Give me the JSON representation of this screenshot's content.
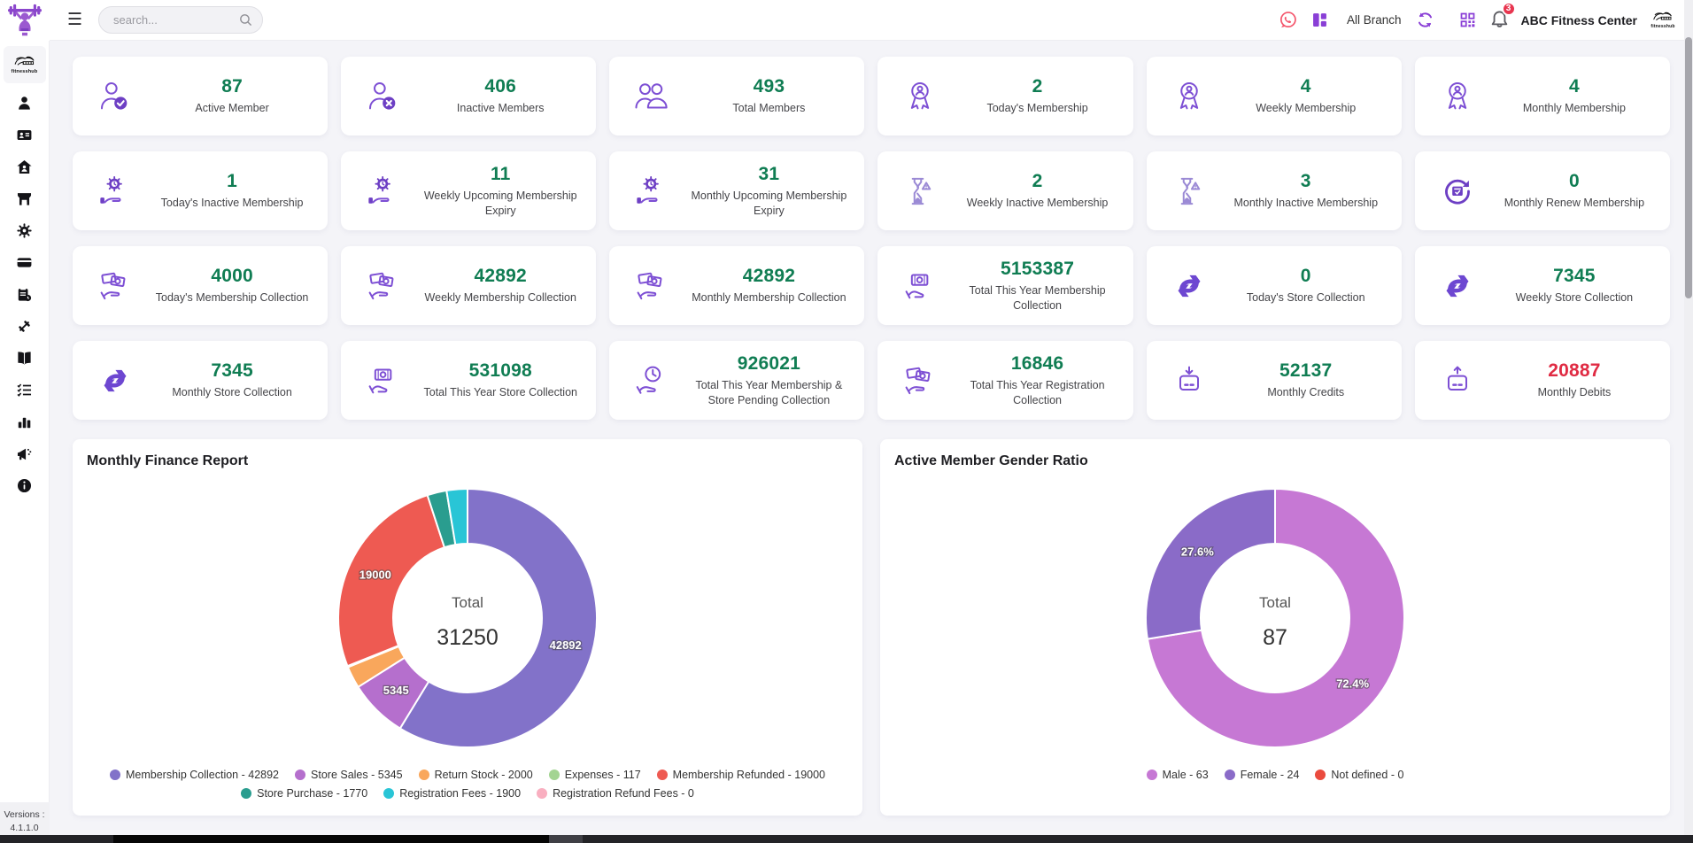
{
  "theme": {
    "accent_purple": "#7d4fd4",
    "value_green": "#107d53",
    "value_red": "#e02b43",
    "badge_red": "#e8354f",
    "whatsapp_red": "#f4566c"
  },
  "header": {
    "search_placeholder": "search...",
    "branch_label": "All Branch",
    "notification_count": "3",
    "org_name": "ABC Fitness Center",
    "icons": [
      "hamburger-icon",
      "search-icon",
      "whatsapp-icon",
      "apps-grid-icon",
      "refresh-icon",
      "qr-code-icon",
      "notification-bell-icon"
    ]
  },
  "sidebar": {
    "brand_text": "fitnesshub",
    "versions_label": "Versions :",
    "version_number": "4.1.1.0",
    "items": [
      {
        "name": "members",
        "icon": "user"
      },
      {
        "name": "membership-card",
        "icon": "id-card"
      },
      {
        "name": "facility",
        "icon": "home"
      },
      {
        "name": "store",
        "icon": "store"
      },
      {
        "name": "settings",
        "icon": "gear"
      },
      {
        "name": "billing",
        "icon": "credit-card"
      },
      {
        "name": "attendance-report",
        "icon": "report"
      },
      {
        "name": "workout",
        "icon": "dumbbell"
      },
      {
        "name": "library",
        "icon": "book"
      },
      {
        "name": "tasks",
        "icon": "checklist"
      },
      {
        "name": "analytics",
        "icon": "bar-chart"
      },
      {
        "name": "announcements",
        "icon": "megaphone"
      },
      {
        "name": "about",
        "icon": "info"
      }
    ]
  },
  "cards": [
    {
      "icon": "user-check",
      "value": "87",
      "label": "Active Member",
      "color": "green"
    },
    {
      "icon": "user-x",
      "value": "406",
      "label": "Inactive Members",
      "color": "green"
    },
    {
      "icon": "users",
      "value": "493",
      "label": "Total Members",
      "color": "green"
    },
    {
      "icon": "award",
      "value": "2",
      "label": "Today's Membership",
      "color": "green"
    },
    {
      "icon": "award",
      "value": "4",
      "label": "Weekly Membership",
      "color": "green"
    },
    {
      "icon": "award",
      "value": "4",
      "label": "Monthly Membership",
      "color": "green"
    },
    {
      "icon": "expiry",
      "value": "1",
      "label": "Today's Inactive Membership",
      "color": "green"
    },
    {
      "icon": "expiry",
      "value": "11",
      "label": "Weekly Upcoming Membership Expiry",
      "color": "green"
    },
    {
      "icon": "expiry",
      "value": "31",
      "label": "Monthly Upcoming Membership Expiry",
      "color": "green"
    },
    {
      "icon": "hourglass",
      "value": "2",
      "label": "Weekly Inactive Membership",
      "color": "green"
    },
    {
      "icon": "hourglass",
      "value": "3",
      "label": "Monthly Inactive Membership",
      "color": "green"
    },
    {
      "icon": "renew",
      "value": "0",
      "label": "Monthly Renew Membership",
      "color": "green"
    },
    {
      "icon": "money-hand",
      "value": "4000",
      "label": "Today's Membership Collection",
      "color": "green"
    },
    {
      "icon": "money-hand",
      "value": "42892",
      "label": "Weekly Membership Collection",
      "color": "green"
    },
    {
      "icon": "money-hand",
      "value": "42892",
      "label": "Monthly Membership Collection",
      "color": "green"
    },
    {
      "icon": "cash-hand",
      "value": "5153387",
      "label": "Total This Year Membership Collection",
      "color": "green"
    },
    {
      "icon": "exchange",
      "value": "0",
      "label": "Today's Store Collection",
      "color": "green"
    },
    {
      "icon": "exchange",
      "value": "7345",
      "label": "Weekly Store Collection",
      "color": "green"
    },
    {
      "icon": "exchange",
      "value": "7345",
      "label": "Monthly Store Collection",
      "color": "green"
    },
    {
      "icon": "cash-hand",
      "value": "531098",
      "label": "Total This Year Store Collection",
      "color": "green"
    },
    {
      "icon": "pending",
      "value": "926021",
      "label": "Total This Year Membership & Store Pending Collection",
      "color": "green"
    },
    {
      "icon": "money-hand",
      "value": "16846",
      "label": "Total This Year Registration Collection",
      "color": "green"
    },
    {
      "icon": "credit-in",
      "value": "52137",
      "label": "Monthly Credits",
      "color": "green"
    },
    {
      "icon": "debit-out",
      "value": "20887",
      "label": "Monthly Debits",
      "color": "red"
    }
  ],
  "chart_data": [
    {
      "type": "pie",
      "title": "Monthly Finance Report",
      "center_label": "Total",
      "center_value": "31250",
      "legend_position": "bottom",
      "series": [
        {
          "name": "Membership Collection",
          "value": 42892,
          "color": "#8272c9",
          "slice_label": "42892"
        },
        {
          "name": "Store Sales",
          "value": 5345,
          "color": "#b56fcd",
          "slice_label": "5345"
        },
        {
          "name": "Return Stock",
          "value": 2000,
          "color": "#f9a75c",
          "slice_label": null
        },
        {
          "name": "Expenses",
          "value": 117,
          "color": "#a3d492",
          "slice_label": null
        },
        {
          "name": "Membership Refunded",
          "value": 19000,
          "color": "#ee5a52",
          "slice_label": "19000"
        },
        {
          "name": "Store Purchase",
          "value": 1770,
          "color": "#2a9d8f",
          "slice_label": null
        },
        {
          "name": "Registration Fees",
          "value": 1900,
          "color": "#29c5d6",
          "slice_label": null
        },
        {
          "name": "Registration Refund Fees",
          "value": 0,
          "color": "#f9afc0",
          "slice_label": null
        }
      ]
    },
    {
      "type": "pie",
      "title": "Active Member Gender Ratio",
      "center_label": "Total",
      "center_value": "87",
      "legend_position": "bottom",
      "series": [
        {
          "name": "Male",
          "value": 63,
          "color": "#c678d4",
          "slice_label": "72.4%"
        },
        {
          "name": "Female",
          "value": 24,
          "color": "#8a6bc8",
          "slice_label": "27.6%"
        },
        {
          "name": "Not defined",
          "value": 0,
          "color": "#ea4b3e",
          "slice_label": null
        }
      ]
    }
  ]
}
